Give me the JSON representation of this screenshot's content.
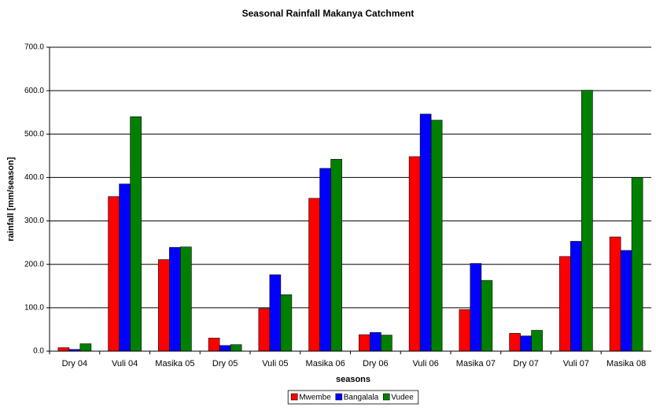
{
  "chart_data": {
    "type": "bar",
    "title": "Seasonal Rainfall Makanya Catchment",
    "x_label": "seasons",
    "y_label": "rainfall [mm/season]",
    "categories": [
      "Dry 04",
      "Vuli 04",
      "Masika 05",
      "Dry 05",
      "Vuli 05",
      "Masika 06",
      "Dry 06",
      "Vuli 06",
      "Masika 07",
      "Dry 07",
      "Vuli 07",
      "Masika 08"
    ],
    "series": [
      {
        "name": "Mwembe",
        "color": "#ff0000",
        "values": [
          8,
          356,
          211,
          30,
          98,
          352,
          38,
          448,
          96,
          41,
          218,
          263
        ]
      },
      {
        "name": "Bangalala",
        "color": "#0000ff",
        "values": [
          4,
          385,
          239,
          13,
          176,
          421,
          43,
          546,
          202,
          35,
          253,
          232
        ]
      },
      {
        "name": "Vudee",
        "color": "#008000",
        "values": [
          17,
          540,
          240,
          15,
          130,
          442,
          37,
          532,
          163,
          48,
          601,
          400
        ]
      }
    ],
    "ylim": [
      0,
      700
    ],
    "yticks": [
      {
        "value": 0,
        "label": "0.0"
      },
      {
        "value": 100,
        "label": "100.0"
      },
      {
        "value": 200,
        "label": "200.0"
      },
      {
        "value": 300,
        "label": "300.0"
      },
      {
        "value": 400,
        "label": "400.0"
      },
      {
        "value": 500,
        "label": "500.0"
      },
      {
        "value": 600,
        "label": "600.0"
      },
      {
        "value": 700,
        "label": "700.0"
      }
    ],
    "grid": true,
    "legend": "bottom"
  }
}
